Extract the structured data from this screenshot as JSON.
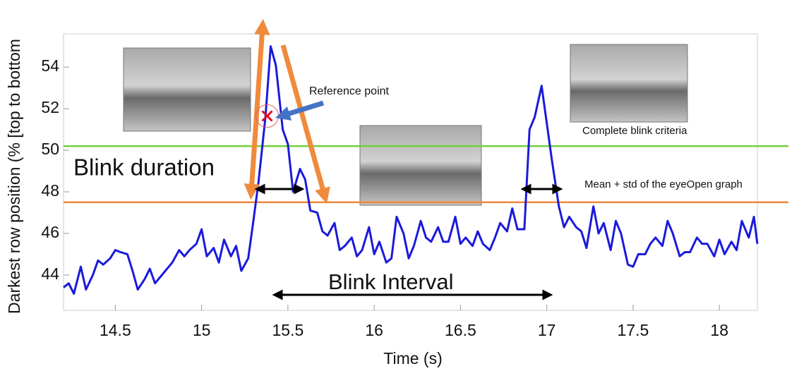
{
  "chart_data": {
    "type": "line",
    "x_label": "Time (s)",
    "y_label": "Darkest row position  (% [top to bottom",
    "xlim": [
      14.2,
      18.22
    ],
    "ylim": [
      42.3,
      55.6
    ],
    "xticks": [
      14.5,
      15,
      15.5,
      16,
      16.5,
      17,
      17.5,
      18
    ],
    "yticks": [
      44,
      46,
      48,
      50,
      52,
      54
    ],
    "series": [
      {
        "color": "#1a1adc",
        "x": [
          14.2,
          14.23,
          14.26,
          14.3,
          14.33,
          14.37,
          14.4,
          14.43,
          14.47,
          14.5,
          14.53,
          14.57,
          14.6,
          14.63,
          14.67,
          14.7,
          14.73,
          14.77,
          14.8,
          14.83,
          14.87,
          14.9,
          14.93,
          14.97,
          15.0,
          15.03,
          15.07,
          15.1,
          15.13,
          15.17,
          15.2,
          15.23,
          15.27,
          15.3,
          15.33,
          15.37,
          15.4,
          15.43,
          15.47,
          15.5,
          15.53,
          15.57,
          15.6,
          15.63,
          15.67,
          15.7,
          15.73,
          15.77,
          15.8,
          15.83,
          15.87,
          15.9,
          15.93,
          15.97,
          16.0,
          16.03,
          16.07,
          16.1,
          16.13,
          16.17,
          16.2,
          16.23,
          16.27,
          16.3,
          16.33,
          16.37,
          16.4,
          16.43,
          16.47,
          16.5,
          16.53,
          16.57,
          16.6,
          16.63,
          16.67,
          16.7,
          16.73,
          16.77,
          16.8,
          16.83,
          16.87,
          16.9,
          16.93,
          16.97,
          17.0,
          17.03,
          17.07,
          17.1,
          17.13,
          17.17,
          17.2,
          17.23,
          17.27,
          17.3,
          17.33,
          17.37,
          17.4,
          17.43,
          17.47,
          17.5,
          17.53,
          17.57,
          17.6,
          17.63,
          17.67,
          17.7,
          17.73,
          17.77,
          17.8,
          17.83,
          17.87,
          17.9,
          17.93,
          17.97,
          18.0,
          18.03,
          18.07,
          18.1,
          18.13,
          18.17,
          18.2,
          18.22
        ],
        "values": [
          43.4,
          43.6,
          43.1,
          44.4,
          43.3,
          44.0,
          44.7,
          44.5,
          44.8,
          45.2,
          45.1,
          45.0,
          44.2,
          43.3,
          43.8,
          44.3,
          43.6,
          44.0,
          44.3,
          44.6,
          45.2,
          44.9,
          45.2,
          45.5,
          46.2,
          44.9,
          45.3,
          44.6,
          45.7,
          44.9,
          45.4,
          44.2,
          44.8,
          46.6,
          48.5,
          51.6,
          55.0,
          54.1,
          51.0,
          50.3,
          48.0,
          49.1,
          48.6,
          47.1,
          47.0,
          46.1,
          45.9,
          46.5,
          45.2,
          45.4,
          45.8,
          44.9,
          45.2,
          46.3,
          45.0,
          45.6,
          44.6,
          44.8,
          46.8,
          46.0,
          44.8,
          45.4,
          46.6,
          45.8,
          45.6,
          46.3,
          45.6,
          45.6,
          46.8,
          45.5,
          45.8,
          45.4,
          46.1,
          45.5,
          45.2,
          45.8,
          46.5,
          46.1,
          47.2,
          46.2,
          46.2,
          51.0,
          51.6,
          53.1,
          51.3,
          49.5,
          47.3,
          46.3,
          46.8,
          46.3,
          46.1,
          45.3,
          47.3,
          46.0,
          46.5,
          45.2,
          46.6,
          46.0,
          44.5,
          44.4,
          45.0,
          45.0,
          45.5,
          45.8,
          45.4,
          46.6,
          46.0,
          44.9,
          45.1,
          45.1,
          45.8,
          45.5,
          45.5,
          44.9,
          45.7,
          45.0,
          45.6,
          45.2,
          46.6,
          45.8,
          46.8,
          45.5
        ]
      }
    ],
    "hlines": [
      {
        "value": 50.2,
        "color": "#6fd13a",
        "label": "Complete blink criteria"
      },
      {
        "value": 47.5,
        "color": "#f08a3c",
        "label": "Mean + std of the eyeOpen graph"
      }
    ],
    "reference_point": {
      "x": 15.38,
      "y": 51.65,
      "label": "Reference point"
    },
    "annotations": [
      "Blink duration",
      "Blink Interval"
    ]
  }
}
